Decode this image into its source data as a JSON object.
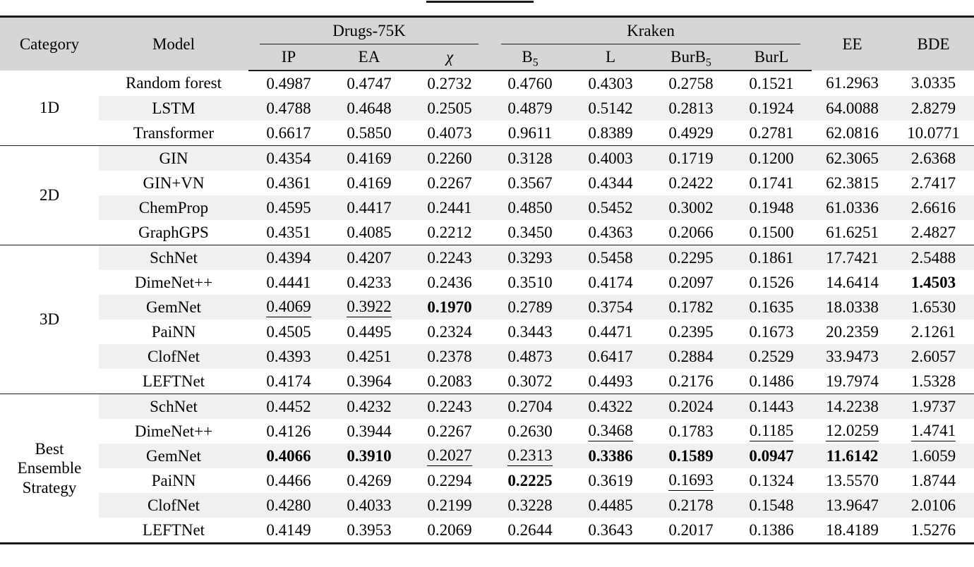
{
  "decorations": {
    "top_partial_rule": "visible"
  },
  "colors": {
    "header_bg": "#d6d6d6",
    "stripe_bg": "#f0f0f0",
    "text": "#000000",
    "rule": "#1a1a1a"
  },
  "table": {
    "headers": {
      "category": "Category",
      "model": "Model",
      "ee": "EE",
      "bde": "BDE"
    },
    "groups": [
      {
        "label": "Drugs-75K",
        "columns": [
          {
            "base": "IP"
          },
          {
            "base": "EA"
          },
          {
            "base": "χ"
          }
        ]
      },
      {
        "label": "Kraken",
        "columns": [
          {
            "base": "B",
            "sub": "5"
          },
          {
            "base": "L"
          },
          {
            "base": "BurB",
            "sub": "5"
          },
          {
            "base": "BurL"
          }
        ]
      }
    ],
    "sections": [
      {
        "category": "1D",
        "rows": [
          {
            "model": "Random forest",
            "values": [
              "0.4987",
              "0.4747",
              "0.2732",
              "0.4760",
              "0.4303",
              "0.2758",
              "0.1521",
              "61.2963",
              "3.0335"
            ],
            "styles": [
              "",
              "",
              "",
              "",
              "",
              "",
              "",
              "",
              ""
            ]
          },
          {
            "model": "LSTM",
            "values": [
              "0.4788",
              "0.4648",
              "0.2505",
              "0.4879",
              "0.5142",
              "0.2813",
              "0.1924",
              "64.0088",
              "2.8279"
            ],
            "styles": [
              "",
              "",
              "",
              "",
              "",
              "",
              "",
              "",
              ""
            ]
          },
          {
            "model": "Transformer",
            "values": [
              "0.6617",
              "0.5850",
              "0.4073",
              "0.9611",
              "0.8389",
              "0.4929",
              "0.2781",
              "62.0816",
              "10.0771"
            ],
            "styles": [
              "",
              "",
              "",
              "",
              "",
              "",
              "",
              "",
              ""
            ]
          }
        ]
      },
      {
        "category": "2D",
        "rows": [
          {
            "model": "GIN",
            "values": [
              "0.4354",
              "0.4169",
              "0.2260",
              "0.3128",
              "0.4003",
              "0.1719",
              "0.1200",
              "62.3065",
              "2.6368"
            ],
            "styles": [
              "",
              "",
              "",
              "",
              "",
              "",
              "",
              "",
              ""
            ]
          },
          {
            "model": "GIN+VN",
            "values": [
              "0.4361",
              "0.4169",
              "0.2267",
              "0.3567",
              "0.4344",
              "0.2422",
              "0.1741",
              "62.3815",
              "2.7417"
            ],
            "styles": [
              "",
              "",
              "",
              "",
              "",
              "",
              "",
              "",
              ""
            ]
          },
          {
            "model": "ChemProp",
            "values": [
              "0.4595",
              "0.4417",
              "0.2441",
              "0.4850",
              "0.5452",
              "0.3002",
              "0.1948",
              "61.0336",
              "2.6616"
            ],
            "styles": [
              "",
              "",
              "",
              "",
              "",
              "",
              "",
              "",
              ""
            ]
          },
          {
            "model": "GraphGPS",
            "values": [
              "0.4351",
              "0.4085",
              "0.2212",
              "0.3450",
              "0.4363",
              "0.2066",
              "0.1500",
              "61.6251",
              "2.4827"
            ],
            "styles": [
              "",
              "",
              "",
              "",
              "",
              "",
              "",
              "",
              ""
            ]
          }
        ]
      },
      {
        "category": "3D",
        "rows": [
          {
            "model": "SchNet",
            "values": [
              "0.4394",
              "0.4207",
              "0.2243",
              "0.3293",
              "0.5458",
              "0.2295",
              "0.1861",
              "17.7421",
              "2.5488"
            ],
            "styles": [
              "",
              "",
              "",
              "",
              "",
              "",
              "",
              "",
              ""
            ]
          },
          {
            "model": "DimeNet++",
            "values": [
              "0.4441",
              "0.4233",
              "0.2436",
              "0.3510",
              "0.4174",
              "0.2097",
              "0.1526",
              "14.6414",
              "1.4503"
            ],
            "styles": [
              "",
              "",
              "",
              "",
              "",
              "",
              "",
              "",
              "b"
            ]
          },
          {
            "model": "GemNet",
            "values": [
              "0.4069",
              "0.3922",
              "0.1970",
              "0.2789",
              "0.3754",
              "0.1782",
              "0.1635",
              "18.0338",
              "1.6530"
            ],
            "styles": [
              "u",
              "u",
              "b",
              "",
              "",
              "",
              "",
              "",
              ""
            ]
          },
          {
            "model": "PaiNN",
            "values": [
              "0.4505",
              "0.4495",
              "0.2324",
              "0.3443",
              "0.4471",
              "0.2395",
              "0.1673",
              "20.2359",
              "2.1261"
            ],
            "styles": [
              "",
              "",
              "",
              "",
              "",
              "",
              "",
              "",
              ""
            ]
          },
          {
            "model": "ClofNet",
            "values": [
              "0.4393",
              "0.4251",
              "0.2378",
              "0.4873",
              "0.6417",
              "0.2884",
              "0.2529",
              "33.9473",
              "2.6057"
            ],
            "styles": [
              "",
              "",
              "",
              "",
              "",
              "",
              "",
              "",
              ""
            ]
          },
          {
            "model": "LEFTNet",
            "values": [
              "0.4174",
              "0.3964",
              "0.2083",
              "0.3072",
              "0.4493",
              "0.2176",
              "0.1486",
              "19.7974",
              "1.5328"
            ],
            "styles": [
              "",
              "",
              "",
              "",
              "",
              "",
              "",
              "",
              ""
            ]
          }
        ]
      },
      {
        "category": "Best Ensemble Strategy",
        "rows": [
          {
            "model": "SchNet",
            "values": [
              "0.4452",
              "0.4232",
              "0.2243",
              "0.2704",
              "0.4322",
              "0.2024",
              "0.1443",
              "14.2238",
              "1.9737"
            ],
            "styles": [
              "",
              "",
              "",
              "",
              "",
              "",
              "",
              "",
              ""
            ]
          },
          {
            "model": "DimeNet++",
            "values": [
              "0.4126",
              "0.3944",
              "0.2267",
              "0.2630",
              "0.3468",
              "0.1783",
              "0.1185",
              "12.0259",
              "1.4741"
            ],
            "styles": [
              "",
              "",
              "",
              "",
              "u",
              "",
              "u",
              "u",
              "u"
            ]
          },
          {
            "model": "GemNet",
            "values": [
              "0.4066",
              "0.3910",
              "0.2027",
              "0.2313",
              "0.3386",
              "0.1589",
              "0.0947",
              "11.6142",
              "1.6059"
            ],
            "styles": [
              "b",
              "b",
              "u",
              "u",
              "b",
              "b",
              "b",
              "b",
              ""
            ]
          },
          {
            "model": "PaiNN",
            "values": [
              "0.4466",
              "0.4269",
              "0.2294",
              "0.2225",
              "0.3619",
              "0.1693",
              "0.1324",
              "13.5570",
              "1.8744"
            ],
            "styles": [
              "",
              "",
              "",
              "b",
              "",
              "u",
              "",
              "",
              ""
            ]
          },
          {
            "model": "ClofNet",
            "values": [
              "0.4280",
              "0.4033",
              "0.2199",
              "0.3228",
              "0.4485",
              "0.2178",
              "0.1548",
              "13.9647",
              "2.0106"
            ],
            "styles": [
              "",
              "",
              "",
              "",
              "",
              "",
              "",
              "",
              ""
            ]
          },
          {
            "model": "LEFTNet",
            "values": [
              "0.4149",
              "0.3953",
              "0.2069",
              "0.2644",
              "0.3643",
              "0.2017",
              "0.1386",
              "18.4189",
              "1.5276"
            ],
            "styles": [
              "",
              "",
              "",
              "",
              "",
              "",
              "",
              "",
              ""
            ]
          }
        ]
      }
    ]
  }
}
